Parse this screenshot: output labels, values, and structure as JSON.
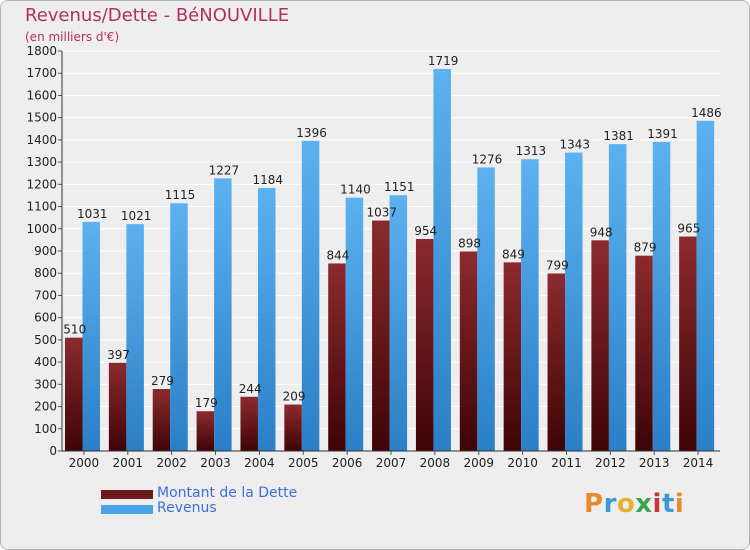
{
  "header": {
    "title": "Revenus/Dette - BéNOUVILLE",
    "subtitle": "(en milliers d'€)"
  },
  "legend": {
    "items": [
      {
        "label": "Montant de la Dette",
        "color": "#6b1a1e"
      },
      {
        "label": "Revenus",
        "color": "#4aa3e6"
      }
    ]
  },
  "logo": {
    "text": "Proxiti",
    "letter_colors": [
      "#e88a2e",
      "#3a9bd8",
      "#e8b030",
      "#3aa64a",
      "#cc3333",
      "#3a9bd8",
      "#e88a2e"
    ]
  },
  "colors": {
    "debt_top": "#8c2a2e",
    "debt_bottom": "#3e0406",
    "revenue_top": "#5cb2f0",
    "revenue_bottom": "#2a7fc6",
    "grid": "#ffffff",
    "plot_bg": "#eeeeee"
  },
  "chart_data": {
    "type": "bar",
    "title": "Revenus/Dette - BéNOUVILLE",
    "subtitle": "(en milliers d'€)",
    "categories": [
      "2000",
      "2001",
      "2002",
      "2003",
      "2004",
      "2005",
      "2006",
      "2007",
      "2008",
      "2009",
      "2010",
      "2011",
      "2012",
      "2013",
      "2014"
    ],
    "series": [
      {
        "name": "Montant de la Dette",
        "values": [
          510,
          397,
          279,
          179,
          244,
          209,
          844,
          1037,
          954,
          898,
          849,
          799,
          948,
          879,
          965
        ]
      },
      {
        "name": "Revenus",
        "values": [
          1031,
          1021,
          1115,
          1227,
          1184,
          1396,
          1140,
          1151,
          1719,
          1276,
          1313,
          1343,
          1381,
          1391,
          1486
        ]
      }
    ],
    "ylim": [
      0,
      1800
    ],
    "yticks": [
      0,
      100,
      200,
      300,
      400,
      500,
      600,
      700,
      800,
      900,
      1000,
      1100,
      1200,
      1300,
      1400,
      1500,
      1600,
      1700,
      1800
    ],
    "grid": true,
    "legend_position": "bottom-left"
  }
}
